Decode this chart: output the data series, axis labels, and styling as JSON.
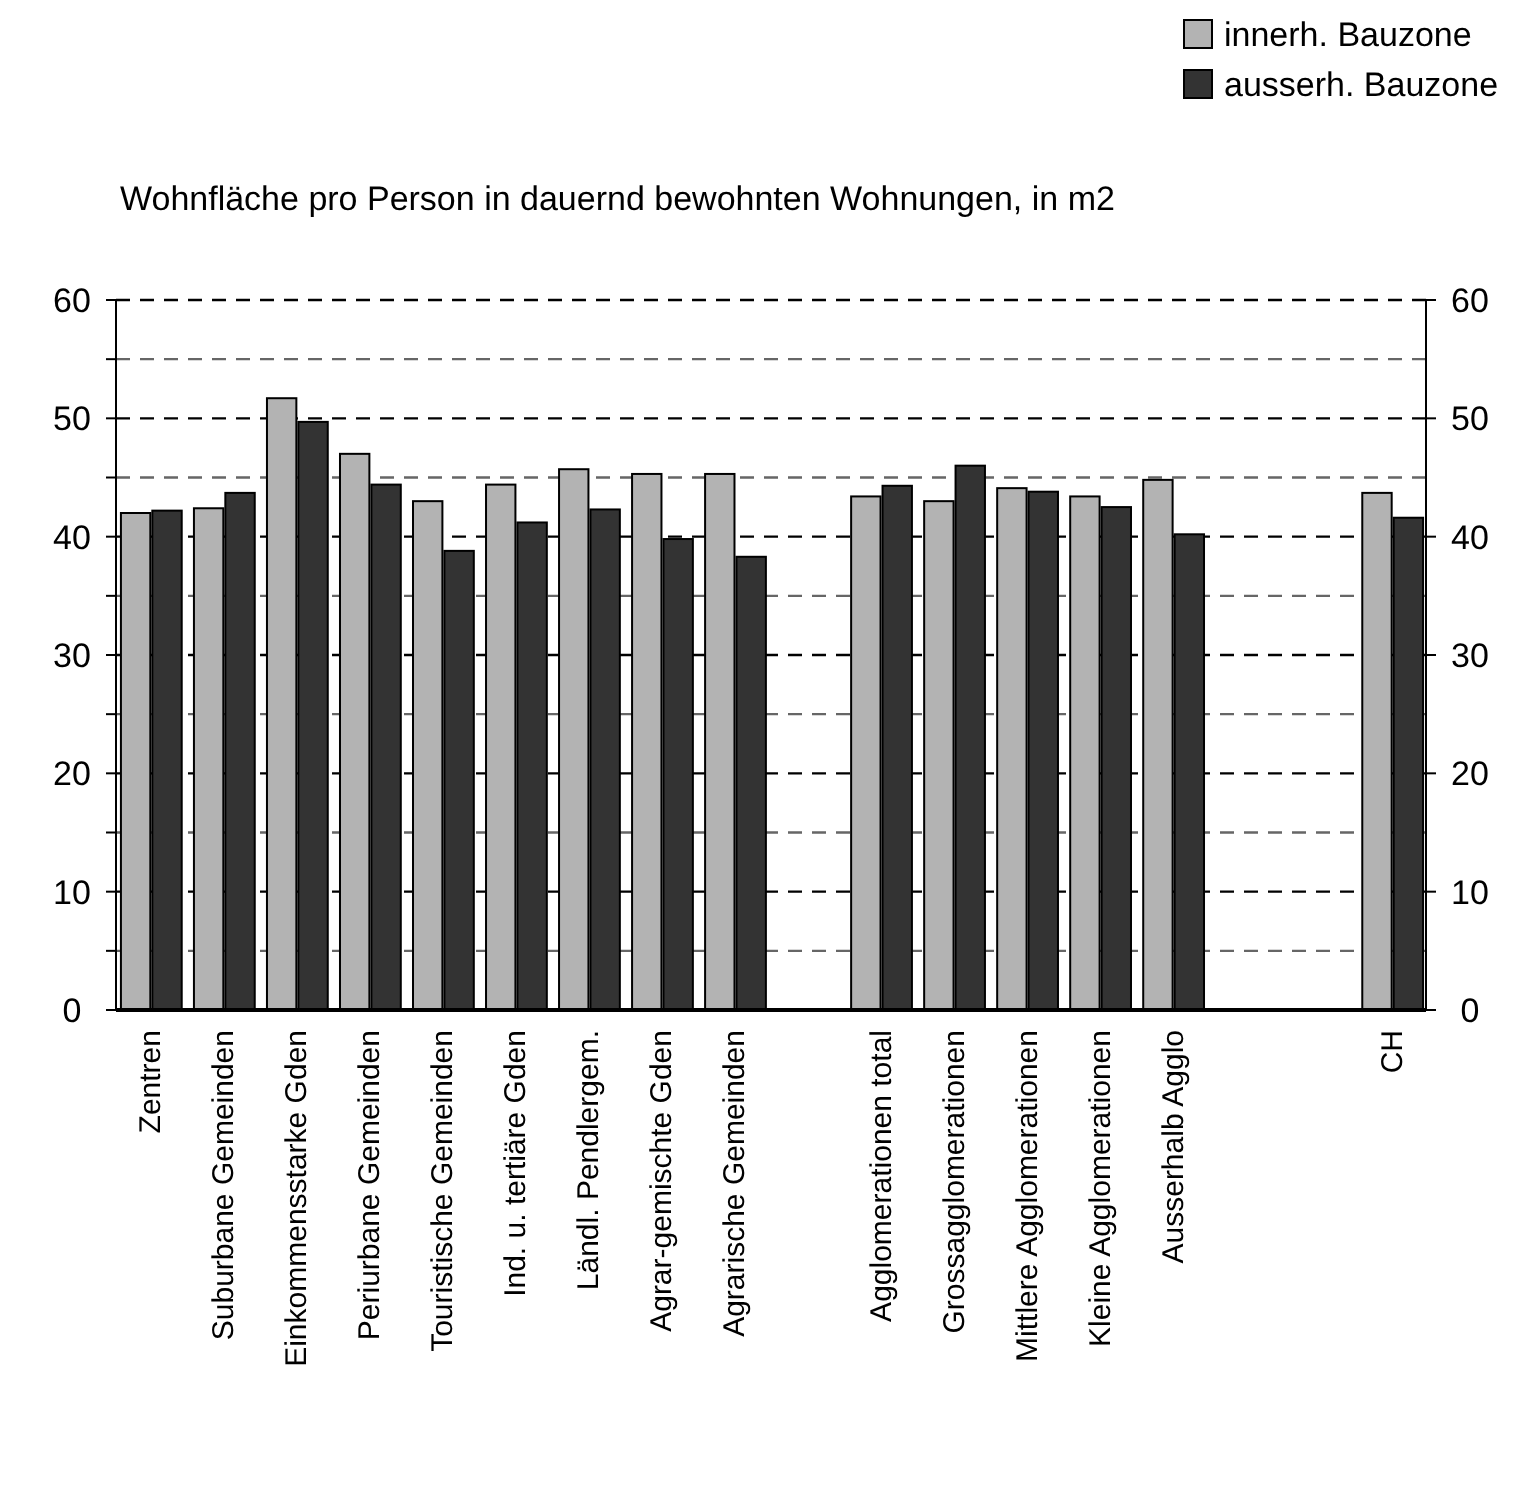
{
  "chart_data": {
    "type": "bar",
    "title": "Wohnfläche pro Person in dauernd bewohnten Wohnungen, in m2",
    "categories": [
      "Zentren",
      "Suburbane Gemeinden",
      "Einkommensstarke Gden",
      "Periurbane Gemeinden",
      "Touristische Gemeinden",
      "Ind. u. tertiäre Gden",
      "Ländl. Pendlergem.",
      "Agrar-gemischte Gden",
      "Agrarische Gemeinden",
      null,
      "Agglomerationen total",
      "Grossagglomerationen",
      "Mittlere Agglomerationen",
      "Kleine Agglomerationen",
      "Ausserhalb Agglo",
      null,
      null,
      "CH"
    ],
    "series": [
      {
        "name": "innerh. Bauzone",
        "color": "#b3b3b3",
        "values": [
          42.0,
          42.4,
          51.7,
          47.0,
          43.0,
          44.4,
          45.7,
          45.3,
          45.3,
          null,
          43.4,
          43.0,
          44.1,
          43.4,
          44.8,
          null,
          null,
          43.7
        ]
      },
      {
        "name": "ausserh. Bauzone",
        "color": "#333333",
        "values": [
          42.2,
          43.7,
          49.7,
          44.4,
          38.8,
          41.2,
          42.3,
          39.8,
          38.3,
          null,
          44.3,
          46.0,
          43.8,
          42.5,
          40.2,
          null,
          null,
          41.6
        ]
      }
    ],
    "ylim": [
      0,
      60
    ],
    "yticks": [
      0,
      {
        "value": 5,
        "label": null
      },
      10,
      {
        "value": 15,
        "label": null
      },
      20,
      {
        "value": 25,
        "label": null
      },
      30,
      {
        "value": 35,
        "label": null
      },
      40,
      {
        "value": 45,
        "label": null
      },
      50,
      {
        "value": 55,
        "label": null
      },
      60
    ],
    "y2lim": [
      0,
      60
    ],
    "y2ticks": [
      0,
      10,
      20,
      30,
      40,
      50,
      60
    ],
    "grid": "y",
    "legend": "top right"
  }
}
